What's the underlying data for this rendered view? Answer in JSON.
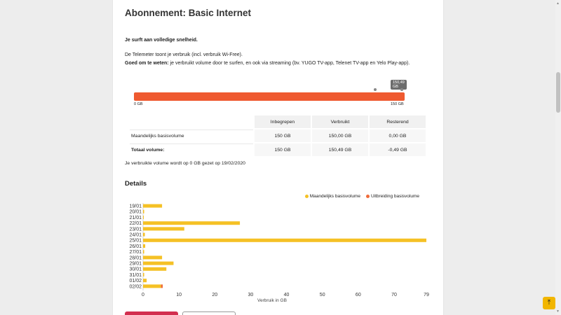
{
  "title": "Abonnement: Basic Internet",
  "surf_text": "Je surft aan volledige snelheid.",
  "telemeter_text": "De Telemeter toont je verbruik (incl. verbruik Wi-Free).",
  "good_label": "Goed om te weten:",
  "good_text": " je verbruikt volume door te surfen, en ook via streaming (bv. YUGO TV-app, Telenet TV-app en Yelo Play-app).",
  "usage_bar": {
    "used_gb": 150.49,
    "limit_gb": 150,
    "tooltip": "150,49 GB",
    "min_label": "0 GB",
    "max_label": "150 GB",
    "color": "#ef5a30"
  },
  "usage_table": {
    "headers": [
      "Inbegrepen",
      "Verbruikt",
      "Resterend"
    ],
    "rows": [
      {
        "label": "Maandelijks basisvolume",
        "values": [
          "150 GB",
          "150,00 GB",
          "0,00 GB"
        ]
      },
      {
        "label": "Totaal volume:",
        "values": [
          "150 GB",
          "150,49 GB",
          "-0,49 GB"
        ]
      }
    ]
  },
  "reset_text": "Je verbruikte volume wordt op 0 GB gezet op 19/02/2020",
  "details_title": "Details",
  "legend": [
    {
      "label": "Maandelijks basisvolume",
      "color": "#f5c125"
    },
    {
      "label": "Uitbreiding basisvolume",
      "color": "#ef6b3a"
    }
  ],
  "chart_data": {
    "type": "bar",
    "orientation": "horizontal",
    "categories": [
      "19/01",
      "20/01",
      "21/01",
      "22/01",
      "23/01",
      "24/01",
      "25/01",
      "26/01",
      "27/01",
      "28/01",
      "29/01",
      "30/01",
      "31/01",
      "01/02",
      "02/02"
    ],
    "series": [
      {
        "name": "Maandelijks basisvolume",
        "color": "#f5c125",
        "values": [
          5.3,
          0.3,
          0.2,
          27,
          11.5,
          0.5,
          79,
          0.6,
          0.3,
          5.3,
          8.5,
          6.5,
          0.3,
          1,
          5
        ]
      },
      {
        "name": "Uitbreiding basisvolume",
        "color": "#ef6b3a",
        "values": [
          0,
          0,
          0,
          0,
          0,
          0,
          0,
          0,
          0,
          0,
          0,
          0,
          0,
          0,
          0.49
        ]
      }
    ],
    "xlabel": "Verbruik in GB",
    "xticks": [
      "0",
      "10",
      "20",
      "30",
      "40",
      "50",
      "60",
      "70",
      "79"
    ],
    "xlim": [
      0,
      79
    ]
  },
  "totop_icon": "arrow-up-to-top-icon"
}
